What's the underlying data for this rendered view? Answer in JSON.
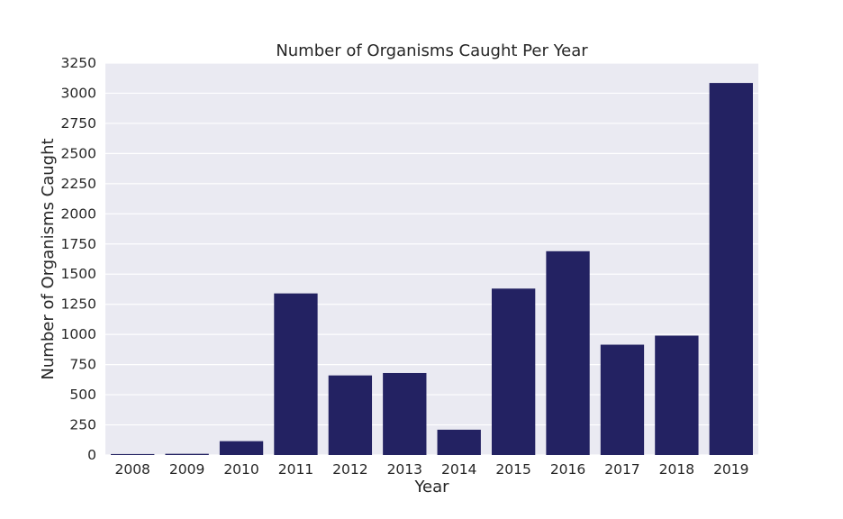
{
  "chart_data": {
    "type": "bar",
    "title": "Number of Organisms Caught Per Year",
    "xlabel": "Year",
    "ylabel": "Number of Organisms Caught",
    "categories": [
      "2008",
      "2009",
      "2010",
      "2011",
      "2012",
      "2013",
      "2014",
      "2015",
      "2016",
      "2017",
      "2018",
      "2019"
    ],
    "values": [
      8,
      10,
      115,
      1340,
      660,
      680,
      210,
      1380,
      1690,
      915,
      990,
      3085
    ],
    "ylim": [
      0,
      3250
    ],
    "yticks": [
      0,
      250,
      500,
      750,
      1000,
      1250,
      1500,
      1750,
      2000,
      2250,
      2500,
      2750,
      3000,
      3250
    ],
    "grid": true,
    "legend": "none",
    "colors": {
      "bar": "#232262",
      "plot_background": "#eaeaf2",
      "grid": "#ffffff",
      "text": "#262626"
    }
  }
}
